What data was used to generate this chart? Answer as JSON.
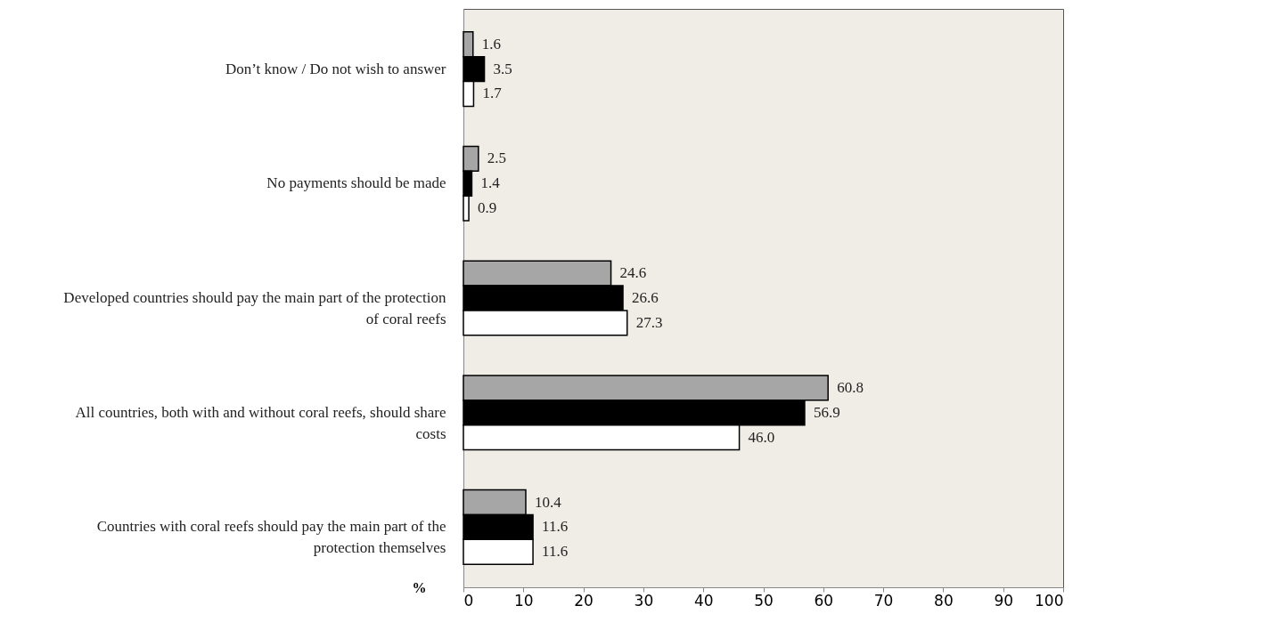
{
  "chart_data": {
    "type": "bar",
    "orientation": "horizontal",
    "xlabel": "%",
    "categories": [
      "Don’t know / Do not wish to answer",
      "No payments should be made",
      "Developed countries should pay the main part of the protection of coral reefs",
      "All countries, both with and without coral reefs, should share costs",
      "Countries with coral reefs should pay the main part of the protection themselves"
    ],
    "series": [
      {
        "color": "#a6a6a6",
        "values": [
          1.6,
          2.5,
          24.6,
          60.8,
          10.4
        ]
      },
      {
        "color": "#000000",
        "values": [
          3.5,
          1.4,
          26.6,
          56.9,
          11.6
        ]
      },
      {
        "color": "#ffffff",
        "values": [
          1.7,
          0.9,
          27.3,
          46.0,
          11.6
        ]
      }
    ],
    "xlim": [
      0,
      100
    ],
    "xticks": [
      0,
      10,
      20,
      30,
      40,
      50,
      60,
      70,
      80,
      90,
      100
    ],
    "value_labels": [
      "1.6",
      "2.5",
      "24.6",
      "60.8",
      "10.4",
      "3.5",
      "1.4",
      "26.6",
      "56.9",
      "11.6",
      "1.7",
      "0.9",
      "27.3",
      "46.0",
      "11.6"
    ],
    "grid": false
  }
}
